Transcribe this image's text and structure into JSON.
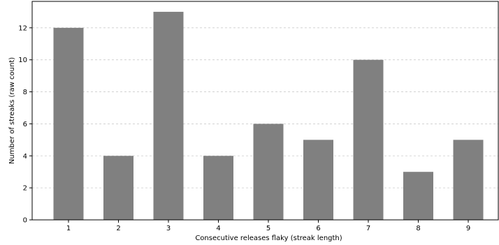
{
  "chart_data": {
    "type": "bar",
    "title": "",
    "xlabel": "Consecutive releases flaky (streak length)",
    "ylabel": "Number of streaks (raw count)",
    "categories": [
      "1",
      "2",
      "3",
      "4",
      "5",
      "6",
      "7",
      "8",
      "9"
    ],
    "values": [
      12,
      4,
      13,
      4,
      6,
      5,
      10,
      3,
      5
    ],
    "ylim": [
      0,
      13.65
    ],
    "yticks": [
      0,
      2,
      4,
      6,
      8,
      10,
      12
    ],
    "grid": true,
    "grid_axis": "y",
    "bar_color": "#808080"
  }
}
